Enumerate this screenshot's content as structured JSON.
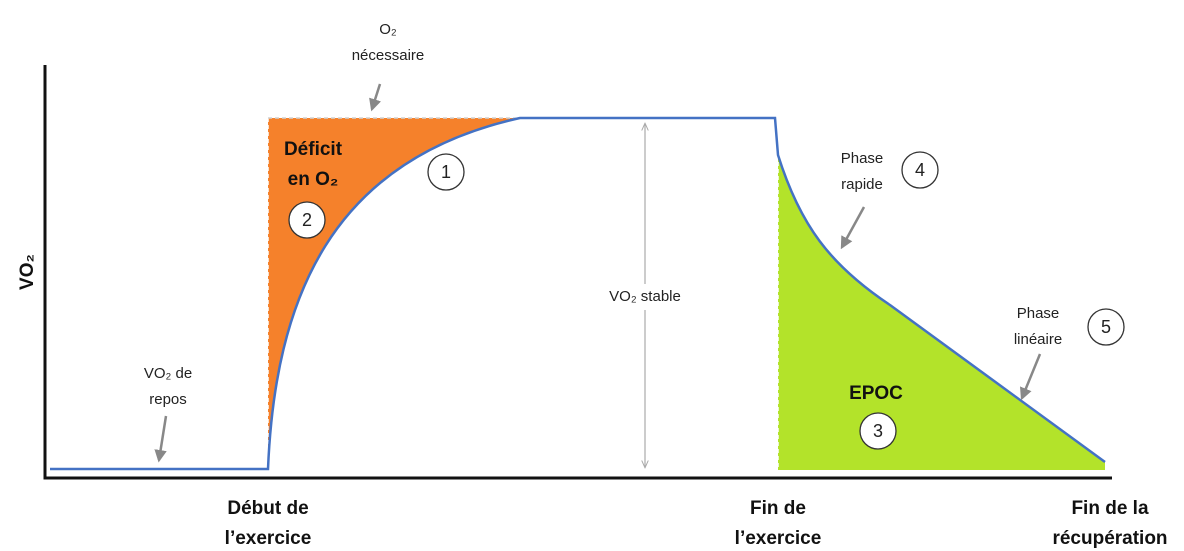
{
  "y_axis_label": "VO₂",
  "labels": {
    "o2_required": [
      "O₂",
      "nécessaire"
    ],
    "deficit": [
      "Déficit",
      "en O₂"
    ],
    "steady": "VO₂ stable",
    "rest": [
      "VO₂ de",
      "repos"
    ],
    "fast_phase": [
      "Phase",
      "rapide"
    ],
    "linear_phase": [
      "Phase",
      "linéaire"
    ],
    "epoc": "EPOC"
  },
  "markers": [
    "1",
    "2",
    "3",
    "4",
    "5"
  ],
  "x_labels": [
    [
      "Début de",
      "l’exercice"
    ],
    [
      "Fin de",
      "l’exercice"
    ],
    [
      "Fin de la",
      "récupération"
    ]
  ]
}
